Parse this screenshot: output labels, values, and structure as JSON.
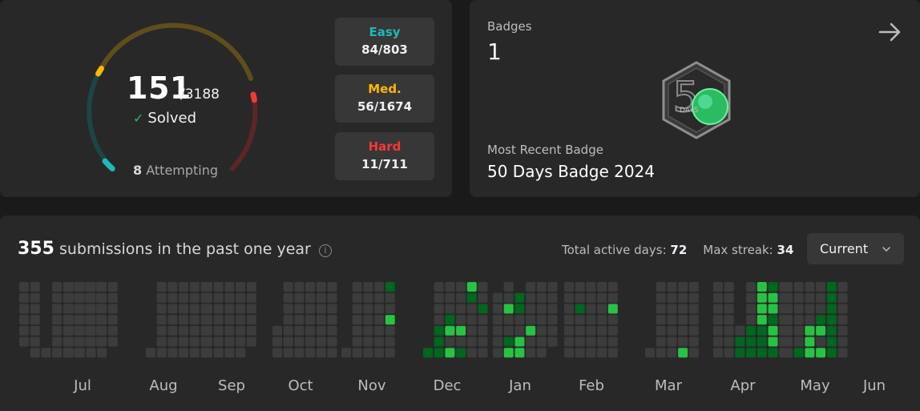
{
  "progress": {
    "solved": "151",
    "total": "/3188",
    "solved_label": "Solved",
    "attempting_count": "8",
    "attempting_label": " Attempting",
    "easy": {
      "label": "Easy",
      "value": "84/803",
      "color": "#1cbaba"
    },
    "medium": {
      "label": "Med.",
      "value": "56/1674",
      "color": "#ffb700"
    },
    "hard": {
      "label": "Hard",
      "value": "11/711",
      "color": "#f63737"
    }
  },
  "badges": {
    "title": "Badges",
    "count": "1",
    "badge_text": "DAYS",
    "recent_title": "Most Recent Badge",
    "recent_name": "50 Days Badge 2024"
  },
  "calendar": {
    "count": "355",
    "heading": "submissions in the past one year",
    "active_days_label": "Total active days: ",
    "active_days": "72",
    "max_streak_label": "Max streak: ",
    "max_streak": "34",
    "dropdown_value": "Current",
    "months": [
      "Jul",
      "Aug",
      "Sep",
      "Oct",
      "Nov",
      "Dec",
      "Jan",
      "Feb",
      "Mar",
      "Apr",
      "May",
      "Jun"
    ],
    "colors": [
      "#3c3c3c",
      "#016620",
      "#28c244",
      "#7fe18b"
    ],
    "month_cells": [
      [
        "1111110",
        "1111111",
        "0000001",
        "1111111",
        "1111111",
        "1111111",
        "1111110",
        "1111110"
      ],
      [
        "1111111",
        "1111111",
        "1111111",
        "1111111",
        "1111110"
      ],
      [
        "0000001",
        "1111111",
        "1111111",
        "1111111",
        "1111111",
        "1111111"
      ],
      [
        "1111111",
        "1111111",
        "1111111",
        "1111111",
        "1111110"
      ],
      [
        "0000111",
        "1111111",
        "1111111",
        "1111111",
        "1111111",
        "1111111"
      ],
      [
        "0000001",
        "1111111",
        "1111111",
        "1111111",
        "2113111"
      ],
      [
        "0000002",
        "1111222",
        "1112313",
        "1111312",
        "3211111",
        "1121111"
      ],
      [
        "0111111",
        "1131123",
        "0221133",
        "1111311",
        "1111111",
        "1111110"
      ],
      [
        "1111111",
        "1121111",
        "1111111",
        "1111111",
        "1131111"
      ],
      [
        "0000001",
        "1111111",
        "1111111",
        "1111113",
        "1111111"
      ],
      [
        "1111111",
        "1111111",
        "0000122",
        "1111222",
        "3333222",
        "2332332",
        "1111111"
      ],
      [
        "1111111",
        "1111112",
        "1111333",
        "1112313",
        "2222222",
        "1111111"
      ]
    ]
  }
}
